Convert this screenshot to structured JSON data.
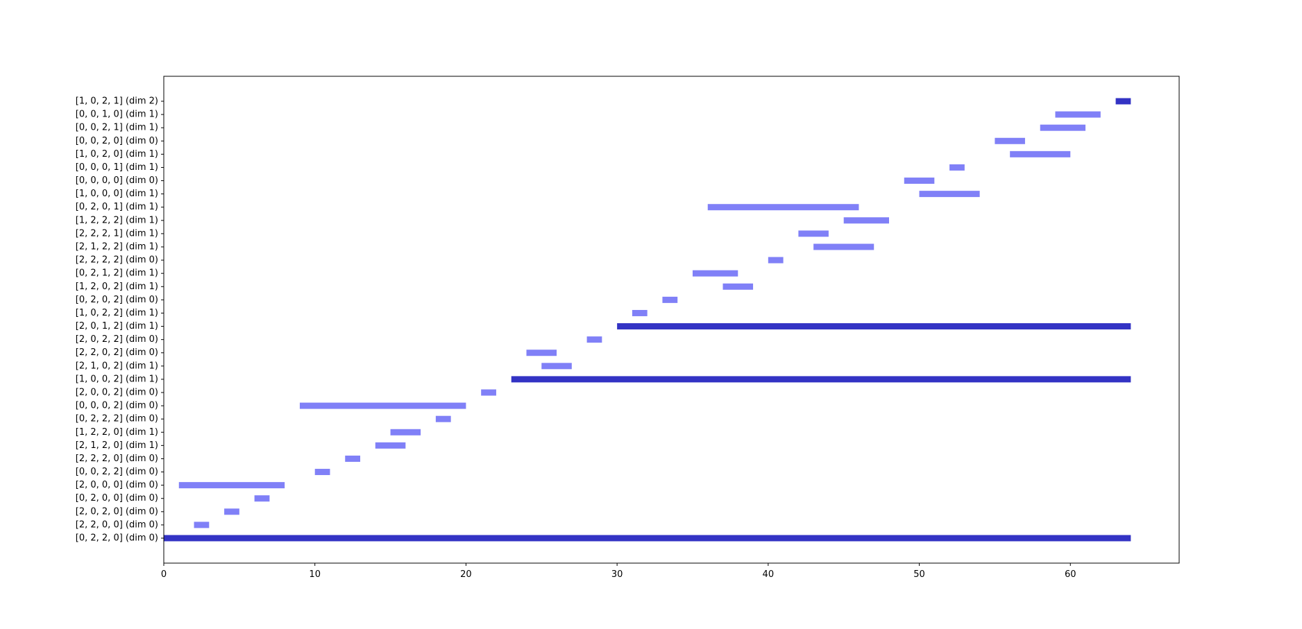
{
  "chart_data": {
    "type": "bar",
    "orientation": "horizontal",
    "title": "",
    "xlabel": "",
    "ylabel": "",
    "xlim": [
      0,
      67.2
    ],
    "xticks": [
      0,
      10,
      20,
      30,
      40,
      50,
      60
    ],
    "grid": false,
    "colors": {
      "highlight": "#3333c4",
      "normal": "#8080f7",
      "frame": "#000000"
    },
    "rows": [
      {
        "label": "[0, 2, 2, 0] (dim 0)",
        "start": 0,
        "end": 64,
        "highlight": true
      },
      {
        "label": "[2, 2, 0, 0] (dim 0)",
        "start": 2,
        "end": 3,
        "highlight": false
      },
      {
        "label": "[2, 0, 2, 0] (dim 0)",
        "start": 4,
        "end": 5,
        "highlight": false
      },
      {
        "label": "[0, 2, 0, 0] (dim 0)",
        "start": 6,
        "end": 7,
        "highlight": false
      },
      {
        "label": "[2, 0, 0, 0] (dim 0)",
        "start": 1,
        "end": 8,
        "highlight": false
      },
      {
        "label": "[0, 0, 2, 2] (dim 0)",
        "start": 10,
        "end": 11,
        "highlight": false
      },
      {
        "label": "[2, 2, 2, 0] (dim 0)",
        "start": 12,
        "end": 13,
        "highlight": false
      },
      {
        "label": "[2, 1, 2, 0] (dim 1)",
        "start": 14,
        "end": 16,
        "highlight": false
      },
      {
        "label": "[1, 2, 2, 0] (dim 1)",
        "start": 15,
        "end": 17,
        "highlight": false
      },
      {
        "label": "[0, 2, 2, 2] (dim 0)",
        "start": 18,
        "end": 19,
        "highlight": false
      },
      {
        "label": "[0, 0, 0, 2] (dim 0)",
        "start": 9,
        "end": 20,
        "highlight": false
      },
      {
        "label": "[2, 0, 0, 2] (dim 0)",
        "start": 21,
        "end": 22,
        "highlight": false
      },
      {
        "label": "[1, 0, 0, 2] (dim 1)",
        "start": 23,
        "end": 64,
        "highlight": true
      },
      {
        "label": "[2, 1, 0, 2] (dim 1)",
        "start": 25,
        "end": 27,
        "highlight": false
      },
      {
        "label": "[2, 2, 0, 2] (dim 0)",
        "start": 24,
        "end": 26,
        "highlight": false
      },
      {
        "label": "[2, 0, 2, 2] (dim 0)",
        "start": 28,
        "end": 29,
        "highlight": false
      },
      {
        "label": "[2, 0, 1, 2] (dim 1)",
        "start": 30,
        "end": 64,
        "highlight": true
      },
      {
        "label": "[1, 0, 2, 2] (dim 1)",
        "start": 31,
        "end": 32,
        "highlight": false
      },
      {
        "label": "[0, 2, 0, 2] (dim 0)",
        "start": 33,
        "end": 34,
        "highlight": false
      },
      {
        "label": "[1, 2, 0, 2] (dim 1)",
        "start": 37,
        "end": 39,
        "highlight": false
      },
      {
        "label": "[0, 2, 1, 2] (dim 1)",
        "start": 35,
        "end": 38,
        "highlight": false
      },
      {
        "label": "[2, 2, 2, 2] (dim 0)",
        "start": 40,
        "end": 41,
        "highlight": false
      },
      {
        "label": "[2, 1, 2, 2] (dim 1)",
        "start": 43,
        "end": 47,
        "highlight": false
      },
      {
        "label": "[2, 2, 2, 1] (dim 1)",
        "start": 42,
        "end": 44,
        "highlight": false
      },
      {
        "label": "[1, 2, 2, 2] (dim 1)",
        "start": 45,
        "end": 48,
        "highlight": false
      },
      {
        "label": "[0, 2, 0, 1] (dim 1)",
        "start": 36,
        "end": 46,
        "highlight": false
      },
      {
        "label": "[1, 0, 0, 0] (dim 1)",
        "start": 50,
        "end": 54,
        "highlight": false
      },
      {
        "label": "[0, 0, 0, 0] (dim 0)",
        "start": 49,
        "end": 51,
        "highlight": false
      },
      {
        "label": "[0, 0, 0, 1] (dim 1)",
        "start": 52,
        "end": 53,
        "highlight": false
      },
      {
        "label": "[1, 0, 2, 0] (dim 1)",
        "start": 56,
        "end": 60,
        "highlight": false
      },
      {
        "label": "[0, 0, 2, 0] (dim 0)",
        "start": 55,
        "end": 57,
        "highlight": false
      },
      {
        "label": "[0, 0, 2, 1] (dim 1)",
        "start": 58,
        "end": 61,
        "highlight": false
      },
      {
        "label": "[0, 0, 1, 0] (dim 1)",
        "start": 59,
        "end": 62,
        "highlight": false
      },
      {
        "label": "[1, 0, 2, 1] (dim 2)",
        "start": 63,
        "end": 64,
        "highlight": true
      }
    ]
  }
}
